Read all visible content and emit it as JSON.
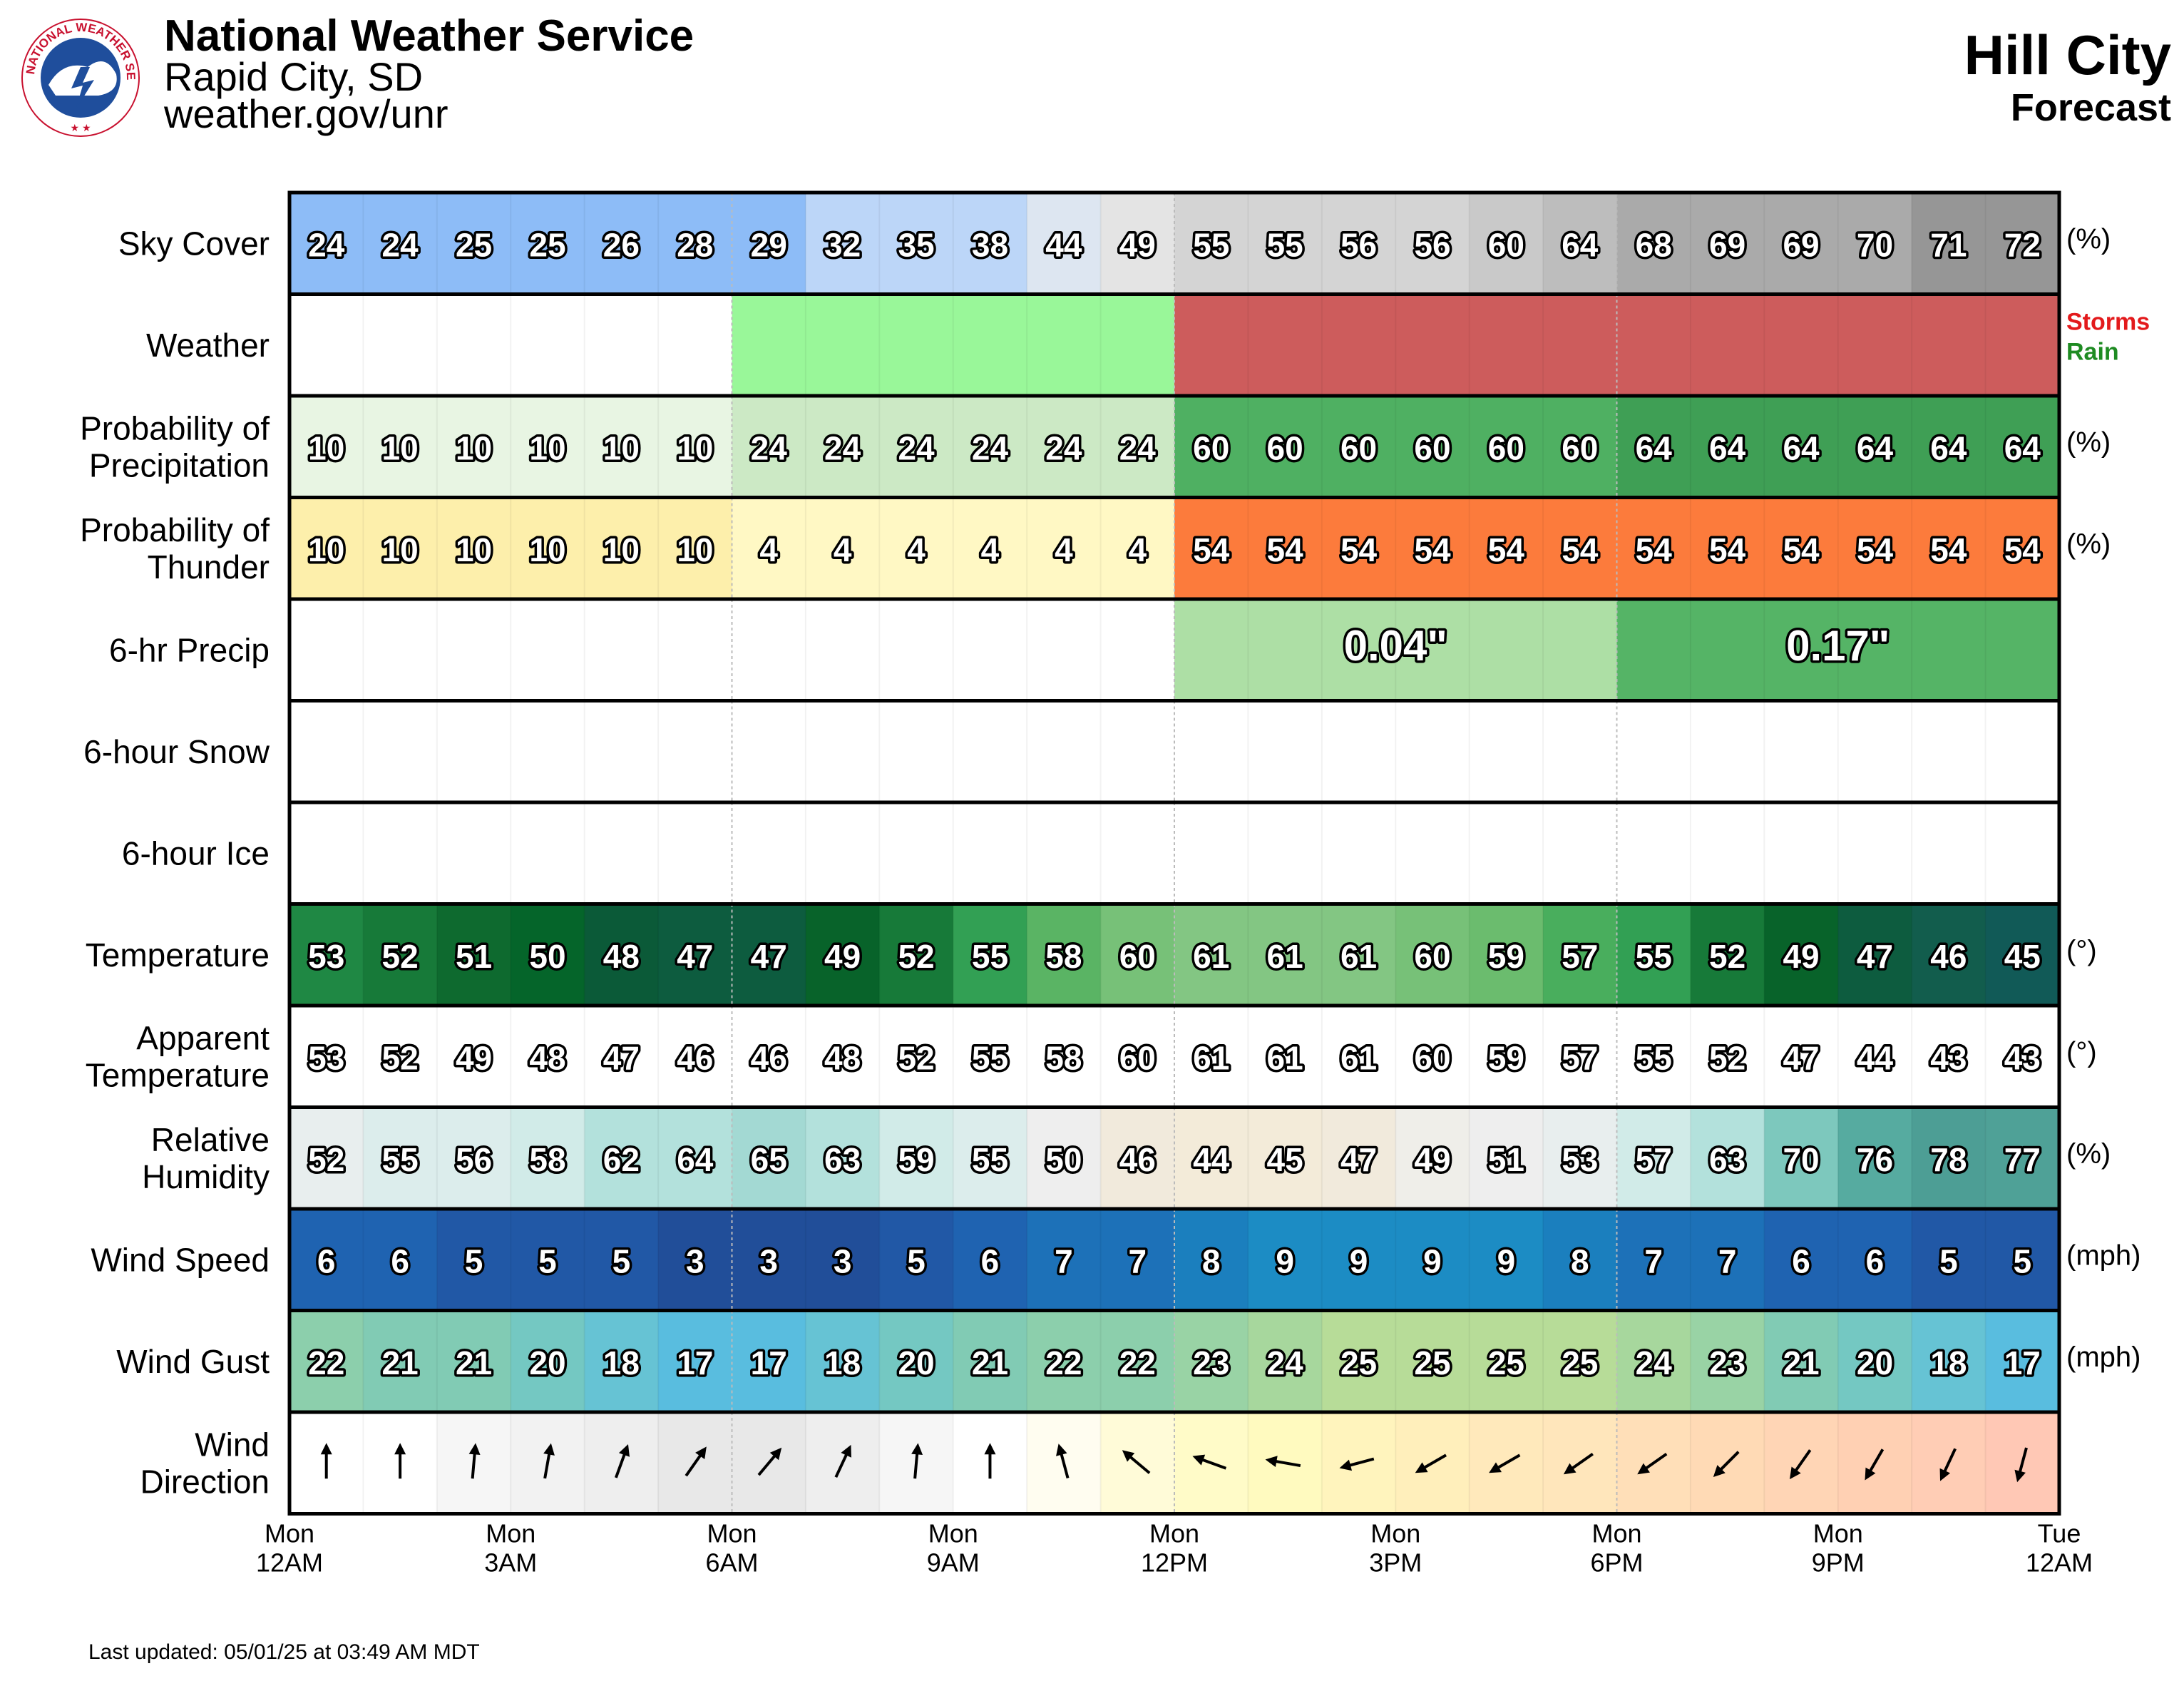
{
  "header": {
    "agency": "National Weather Service",
    "office": "Rapid City, SD",
    "url": "weather.gov/unr",
    "location": "Hill City",
    "product": "Forecast",
    "updated": "Last updated: 05/01/25 at 03:49 AM MDT",
    "logo_text": "NATIONAL WEATHER SERVICE"
  },
  "chart_data": {
    "type": "table",
    "hours": 24,
    "time_axis": [
      {
        "day": "Mon",
        "time": "12AM"
      },
      {
        "day": "Mon",
        "time": "3AM"
      },
      {
        "day": "Mon",
        "time": "6AM"
      },
      {
        "day": "Mon",
        "time": "9AM"
      },
      {
        "day": "Mon",
        "time": "12PM"
      },
      {
        "day": "Mon",
        "time": "3PM"
      },
      {
        "day": "Mon",
        "time": "6PM"
      },
      {
        "day": "Mon",
        "time": "9PM"
      },
      {
        "day": "Tue",
        "time": "12AM"
      }
    ],
    "rows": [
      {
        "key": "sky_cover",
        "label": [
          "Sky Cover"
        ],
        "unit": "(%)",
        "scale": "sky",
        "values": [
          24,
          24,
          25,
          25,
          26,
          28,
          29,
          32,
          35,
          38,
          44,
          49,
          55,
          55,
          56,
          56,
          60,
          64,
          68,
          69,
          69,
          70,
          71,
          72
        ]
      },
      {
        "key": "weather",
        "label": [
          "Weather"
        ],
        "unit": "",
        "segments": [
          {
            "start": 0,
            "end": 6,
            "type": "none",
            "color": "#ffffff"
          },
          {
            "start": 6,
            "end": 12,
            "type": "Rain",
            "color": "#99f799"
          },
          {
            "start": 12,
            "end": 24,
            "type": "Storms",
            "color": "#cd5c5c"
          }
        ],
        "legend": [
          {
            "text": "Storms",
            "color": "#e31a1c"
          },
          {
            "text": "Rain",
            "color": "#1e8b22"
          }
        ]
      },
      {
        "key": "pop",
        "label": [
          "Probability of",
          "Precipitation"
        ],
        "unit": "(%)",
        "scale": "pop",
        "values": [
          10,
          10,
          10,
          10,
          10,
          10,
          24,
          24,
          24,
          24,
          24,
          24,
          60,
          60,
          60,
          60,
          60,
          60,
          64,
          64,
          64,
          64,
          64,
          64
        ]
      },
      {
        "key": "thunder",
        "label": [
          "Probability of",
          "Thunder"
        ],
        "unit": "(%)",
        "scale": "thunder",
        "values": [
          10,
          10,
          10,
          10,
          10,
          10,
          4,
          4,
          4,
          4,
          4,
          4,
          54,
          54,
          54,
          54,
          54,
          54,
          54,
          54,
          54,
          54,
          54,
          54
        ]
      },
      {
        "key": "qpf",
        "label": [
          "6-hr Precip"
        ],
        "unit": "",
        "periods": [
          {
            "start": 0,
            "end": 6,
            "value": null,
            "color": "#ffffff"
          },
          {
            "start": 6,
            "end": 12,
            "value": null,
            "color": "#ffffff"
          },
          {
            "start": 12,
            "end": 18,
            "value": "0.04\"",
            "color": "#addfa5"
          },
          {
            "start": 18,
            "end": 24,
            "value": "0.17\"",
            "color": "#55b466"
          }
        ]
      },
      {
        "key": "snow",
        "label": [
          "6-hour Snow"
        ],
        "unit": "",
        "periods": []
      },
      {
        "key": "ice",
        "label": [
          "6-hour Ice"
        ],
        "unit": "",
        "periods": []
      },
      {
        "key": "temperature",
        "label": [
          "Temperature"
        ],
        "unit": "(°)",
        "scale": "temp",
        "values": [
          53,
          52,
          51,
          50,
          48,
          47,
          47,
          49,
          52,
          55,
          58,
          60,
          61,
          61,
          61,
          60,
          59,
          57,
          55,
          52,
          49,
          47,
          46,
          45
        ]
      },
      {
        "key": "apparent",
        "label": [
          "Apparent",
          "Temperature"
        ],
        "unit": "(°)",
        "scale": "white",
        "values": [
          53,
          52,
          49,
          48,
          47,
          46,
          46,
          48,
          52,
          55,
          58,
          60,
          61,
          61,
          61,
          60,
          59,
          57,
          55,
          52,
          47,
          44,
          43,
          43
        ]
      },
      {
        "key": "rh",
        "label": [
          "Relative",
          "Humidity"
        ],
        "unit": "(%)",
        "scale": "rh",
        "values": [
          52,
          55,
          56,
          58,
          62,
          64,
          65,
          63,
          59,
          55,
          50,
          46,
          44,
          45,
          47,
          49,
          51,
          53,
          57,
          63,
          70,
          76,
          78,
          77
        ]
      },
      {
        "key": "wind_speed",
        "label": [
          "Wind Speed"
        ],
        "unit": "(mph)",
        "scale": "wind",
        "values": [
          6,
          6,
          5,
          5,
          5,
          3,
          3,
          3,
          5,
          6,
          7,
          7,
          8,
          9,
          9,
          9,
          9,
          8,
          7,
          7,
          6,
          6,
          5,
          5
        ]
      },
      {
        "key": "wind_gust",
        "label": [
          "Wind Gust"
        ],
        "unit": "(mph)",
        "scale": "gust",
        "values": [
          22,
          21,
          21,
          20,
          18,
          17,
          17,
          18,
          20,
          21,
          22,
          22,
          23,
          24,
          25,
          25,
          25,
          25,
          24,
          23,
          21,
          20,
          18,
          17
        ]
      },
      {
        "key": "wind_dir",
        "label": [
          "Wind",
          "Direction"
        ],
        "unit": "",
        "scale": "dir",
        "values_deg": [
          180,
          180,
          185,
          190,
          200,
          215,
          220,
          205,
          185,
          180,
          165,
          130,
          110,
          100,
          75,
          60,
          60,
          55,
          55,
          45,
          35,
          30,
          25,
          15
        ]
      }
    ],
    "colors": {
      "sky": [
        [
          24,
          "#8dbcf7"
        ],
        [
          35,
          "#bcd6f8"
        ],
        [
          44,
          "#dde6f1"
        ],
        [
          49,
          "#e4e4e4"
        ],
        [
          55,
          "#d4d4d4"
        ],
        [
          60,
          "#c9c9c9"
        ],
        [
          64,
          "#bdbdbd"
        ],
        [
          68,
          "#aaaaaa"
        ],
        [
          72,
          "#969696"
        ]
      ],
      "pop": [
        [
          10,
          "#e8f5e3"
        ],
        [
          24,
          "#cce9c5"
        ],
        [
          60,
          "#4fb062"
        ],
        [
          64,
          "#3f9f55"
        ]
      ],
      "thunder": [
        [
          4,
          "#fff8c4"
        ],
        [
          10,
          "#fdefab"
        ],
        [
          54,
          "#fc7b3c"
        ]
      ],
      "temp": [
        [
          45,
          "#115a57"
        ],
        [
          46,
          "#125d4d"
        ],
        [
          47,
          "#0d5c3f"
        ],
        [
          48,
          "#0b5a38"
        ],
        [
          49,
          "#08632a"
        ],
        [
          50,
          "#05652a"
        ],
        [
          51,
          "#0e6a2f"
        ],
        [
          52,
          "#177a39"
        ],
        [
          53,
          "#1f8844"
        ],
        [
          55,
          "#32a054"
        ],
        [
          57,
          "#49ae5d"
        ],
        [
          58,
          "#5ab464"
        ],
        [
          59,
          "#6bbc6e"
        ],
        [
          60,
          "#77c178"
        ],
        [
          61,
          "#83c683"
        ]
      ],
      "rh": [
        [
          44,
          "#f3ebd9"
        ],
        [
          46,
          "#f1eadc"
        ],
        [
          49,
          "#efeee9"
        ],
        [
          50,
          "#eeeeee"
        ],
        [
          52,
          "#e8eeee"
        ],
        [
          55,
          "#dcedec"
        ],
        [
          58,
          "#d1ebe8"
        ],
        [
          63,
          "#b3e1dc"
        ],
        [
          65,
          "#a3d9d3"
        ],
        [
          70,
          "#7dc8bd"
        ],
        [
          76,
          "#56aba0"
        ],
        [
          78,
          "#4d9e95"
        ],
        [
          77,
          "#4fa197"
        ]
      ],
      "wind": [
        [
          3,
          "#214e99"
        ],
        [
          5,
          "#2158a6"
        ],
        [
          6,
          "#1f63b1"
        ],
        [
          7,
          "#1d71b8"
        ],
        [
          8,
          "#1b7fbe"
        ],
        [
          9,
          "#1c8cc4"
        ]
      ],
      "gust": [
        [
          17,
          "#59bddf"
        ],
        [
          18,
          "#66c3d4"
        ],
        [
          20,
          "#74c8c2"
        ],
        [
          21,
          "#81cbb4"
        ],
        [
          22,
          "#8ccfac"
        ],
        [
          23,
          "#99d3a5"
        ],
        [
          24,
          "#a7d79d"
        ],
        [
          25,
          "#b7dc98"
        ]
      ],
      "dir": [
        "#ffffff",
        "#ffffff",
        "#f6f6f6",
        "#f2f2f2",
        "#eeeeee",
        "#e8e8e8",
        "#e8e8e8",
        "#eeeeee",
        "#f6f6f6",
        "#ffffff",
        "#fffdf0",
        "#fffbd8",
        "#fffbc8",
        "#fffabf",
        "#fff4bd",
        "#ffefbb",
        "#ffe9bb",
        "#ffe6bb",
        "#ffdfb8",
        "#ffdab5",
        "#ffd5b5",
        "#ffd0b3",
        "#ffcdb5",
        "#ffc8b5"
      ]
    }
  }
}
